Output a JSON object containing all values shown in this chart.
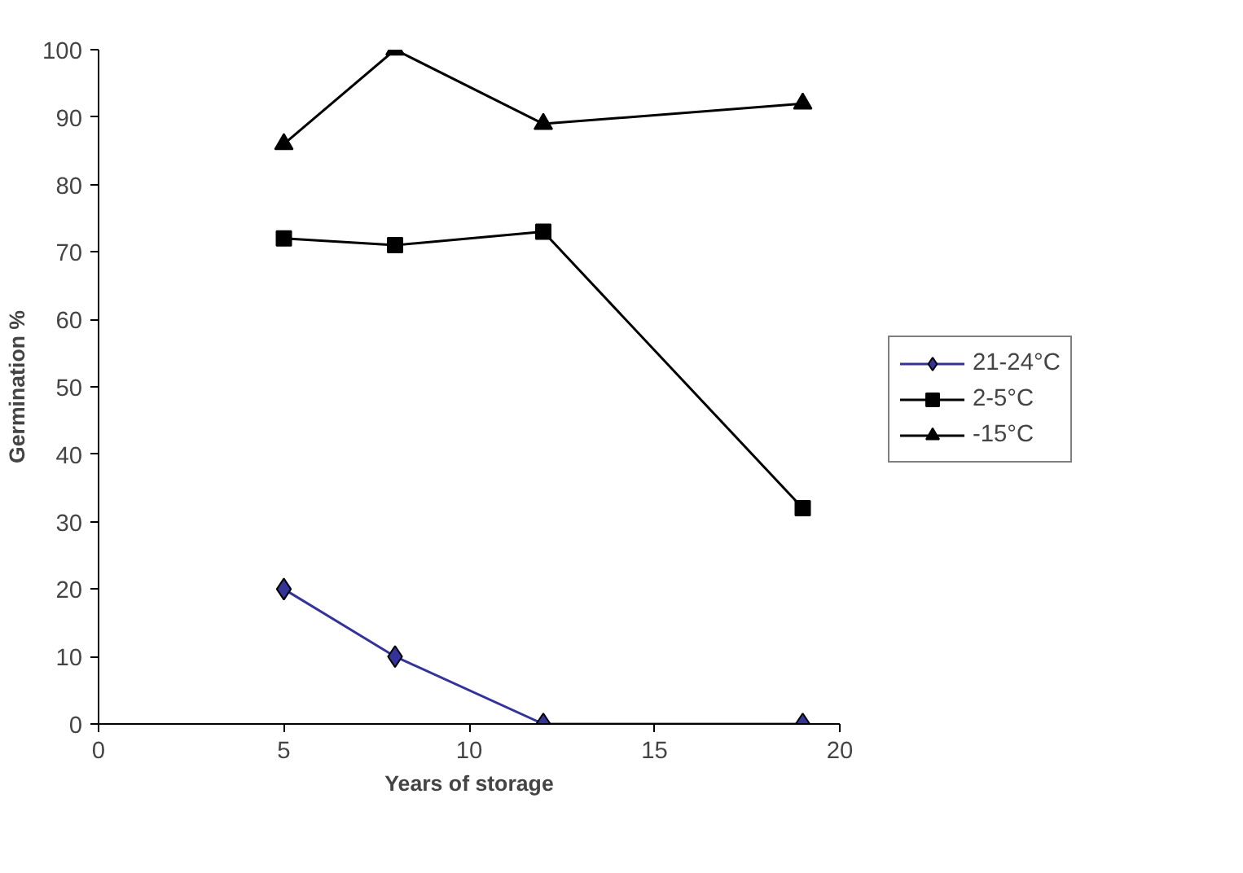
{
  "chart_data": {
    "type": "line",
    "xlabel": "Years of storage",
    "ylabel": "Germination %",
    "x": [
      5,
      8,
      12,
      19
    ],
    "series": [
      {
        "name": "21-24°C",
        "color": "#333399",
        "marker": "diamond",
        "values": [
          20,
          10,
          0,
          0
        ]
      },
      {
        "name": "2-5°C",
        "color": "#000000",
        "marker": "square",
        "values": [
          72,
          71,
          73,
          32
        ]
      },
      {
        "name": "-15°C",
        "color": "#000000",
        "marker": "triangle",
        "values": [
          86,
          100,
          89,
          92
        ]
      }
    ],
    "xlim": [
      0,
      20
    ],
    "xticks": [
      0,
      5,
      10,
      15,
      20
    ],
    "ylim": [
      0,
      100
    ],
    "yticks": [
      0,
      10,
      20,
      30,
      40,
      50,
      60,
      70,
      80,
      90,
      100
    ],
    "grid": false,
    "legend": "right",
    "line_style": "solid"
  }
}
